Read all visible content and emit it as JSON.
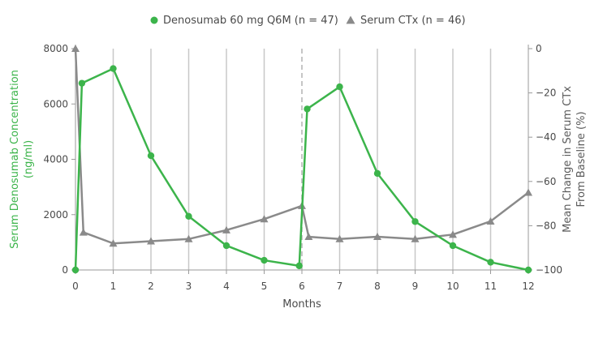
{
  "chart_data": {
    "type": "line",
    "title": "",
    "xlabel": "Months",
    "ylabel_left": "Serum Denosumab Concentration (ng/ml)",
    "ylabel_right": "Mean Change in Serum CTx From Baseline (%)",
    "x_ticks": [
      0,
      1,
      2,
      3,
      4,
      5,
      6,
      7,
      8,
      9,
      10,
      11,
      12
    ],
    "xlim": [
      0,
      12
    ],
    "ylim_left": [
      0,
      8000
    ],
    "y_ticks_left": [
      0,
      2000,
      4000,
      6000,
      8000
    ],
    "ylim_right": [
      -100,
      0
    ],
    "y_ticks_right": [
      0,
      -20,
      -40,
      -60,
      -80,
      -100
    ],
    "grid": "vertical",
    "dose_marker_x": 6,
    "legend_position": "top-center",
    "series": [
      {
        "name": "Denosumab 60 mg Q6M (n = 47)",
        "axis": "left",
        "marker": "circle",
        "color": "#3cb44b",
        "x": [
          0,
          0.17,
          1,
          2,
          3,
          4,
          5,
          5.93,
          6.14,
          7,
          8,
          9,
          10,
          11,
          12
        ],
        "y": [
          0,
          6750,
          7280,
          4130,
          1940,
          880,
          350,
          150,
          5820,
          6620,
          3490,
          1750,
          880,
          280,
          0
        ]
      },
      {
        "name": "Serum CTx (n = 46)",
        "axis": "right",
        "marker": "triangle",
        "color": "#8a8a8a",
        "x": [
          0,
          0.21,
          1,
          2,
          3,
          4,
          5,
          6,
          6.18,
          7,
          8,
          9,
          10,
          11,
          12
        ],
        "y": [
          0,
          -83,
          -88,
          -87,
          -86,
          -82,
          -77,
          -71,
          -85,
          -86,
          -85,
          -86,
          -84,
          -78,
          -65
        ]
      }
    ]
  }
}
